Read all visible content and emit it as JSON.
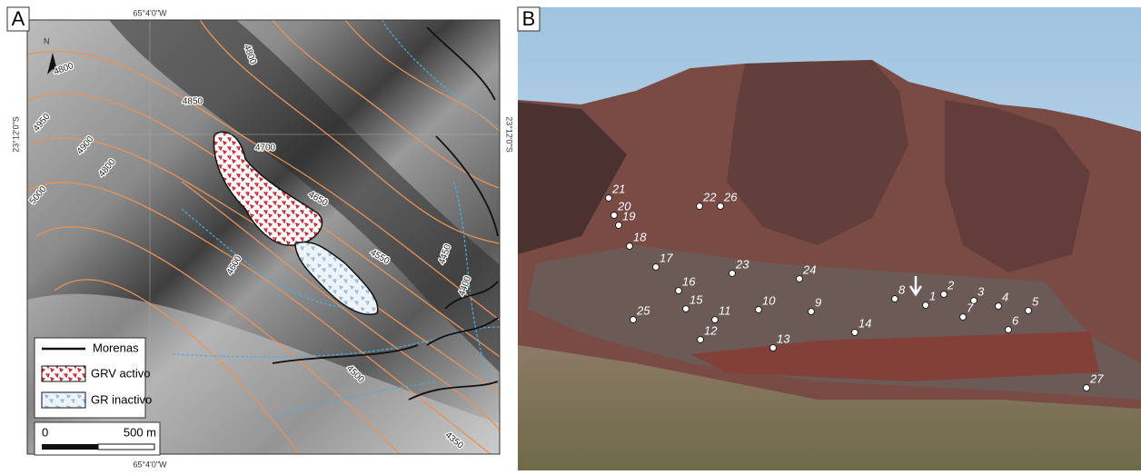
{
  "panel_a": {
    "label": "A",
    "lon_label_top": "65°4'0\"W",
    "lon_label_bottom": "65°4'0\"W",
    "lat_label_left": "23°12'0\"S",
    "lat_label_right": "23°12'0\"S",
    "north": "N",
    "contour_labels": [
      4800,
      4800,
      4850,
      4950,
      4900,
      4800,
      5000,
      4700,
      4650,
      4550,
      4450,
      4400,
      4600,
      4500,
      4350
    ],
    "legend": [
      "Morenas",
      "GRV activo",
      "GR inactivo"
    ],
    "scale": {
      "start": "0",
      "end": "500 m"
    }
  },
  "panel_b": {
    "label": "B",
    "points": [
      "1",
      "2",
      "3",
      "4",
      "5",
      "6",
      "7",
      "8",
      "9",
      "10",
      "11",
      "12",
      "13",
      "14",
      "15",
      "16",
      "17",
      "18",
      "19",
      "20",
      "21",
      "22",
      "23",
      "24",
      "25",
      "26",
      "27"
    ]
  }
}
